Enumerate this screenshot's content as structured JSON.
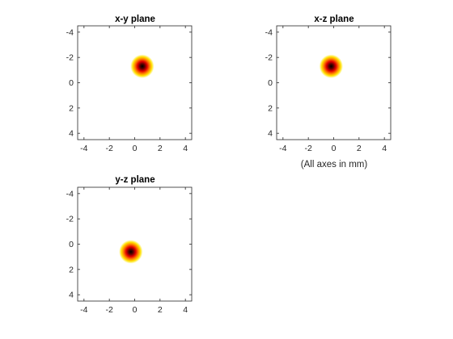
{
  "figure_note": "(All axes in mm)",
  "chart_data": [
    {
      "type": "heatmap",
      "title": "x-y plane",
      "xlabel": "",
      "ylabel": "",
      "xlim": [
        -4.5,
        4.5
      ],
      "ylim": [
        -4.5,
        4.5
      ],
      "y_reversed": true,
      "xticks": [
        -4,
        -2,
        0,
        2,
        4
      ],
      "yticks": [
        -4,
        -2,
        0,
        2,
        4
      ],
      "colormap": "hot (reversed)",
      "peak": {
        "x": 0.6,
        "y": -1.3
      },
      "grid": false
    },
    {
      "type": "heatmap",
      "title": "x-z plane",
      "xlabel": "",
      "ylabel": "",
      "xlim": [
        -4.5,
        4.5
      ],
      "ylim": [
        -4.5,
        4.5
      ],
      "y_reversed": true,
      "xticks": [
        -4,
        -2,
        0,
        2,
        4
      ],
      "yticks": [
        -4,
        -2,
        0,
        2,
        4
      ],
      "colormap": "hot (reversed)",
      "peak": {
        "x": -0.2,
        "y": -1.3
      },
      "grid": false
    },
    {
      "type": "heatmap",
      "title": "y-z plane",
      "xlabel": "",
      "ylabel": "",
      "xlim": [
        -4.5,
        4.5
      ],
      "ylim": [
        -4.5,
        4.5
      ],
      "y_reversed": true,
      "xticks": [
        -4,
        -2,
        0,
        2,
        4
      ],
      "yticks": [
        -4,
        -2,
        0,
        2,
        4
      ],
      "colormap": "hot (reversed)",
      "peak": {
        "x": -0.3,
        "y": 0.6
      },
      "grid": false
    }
  ]
}
